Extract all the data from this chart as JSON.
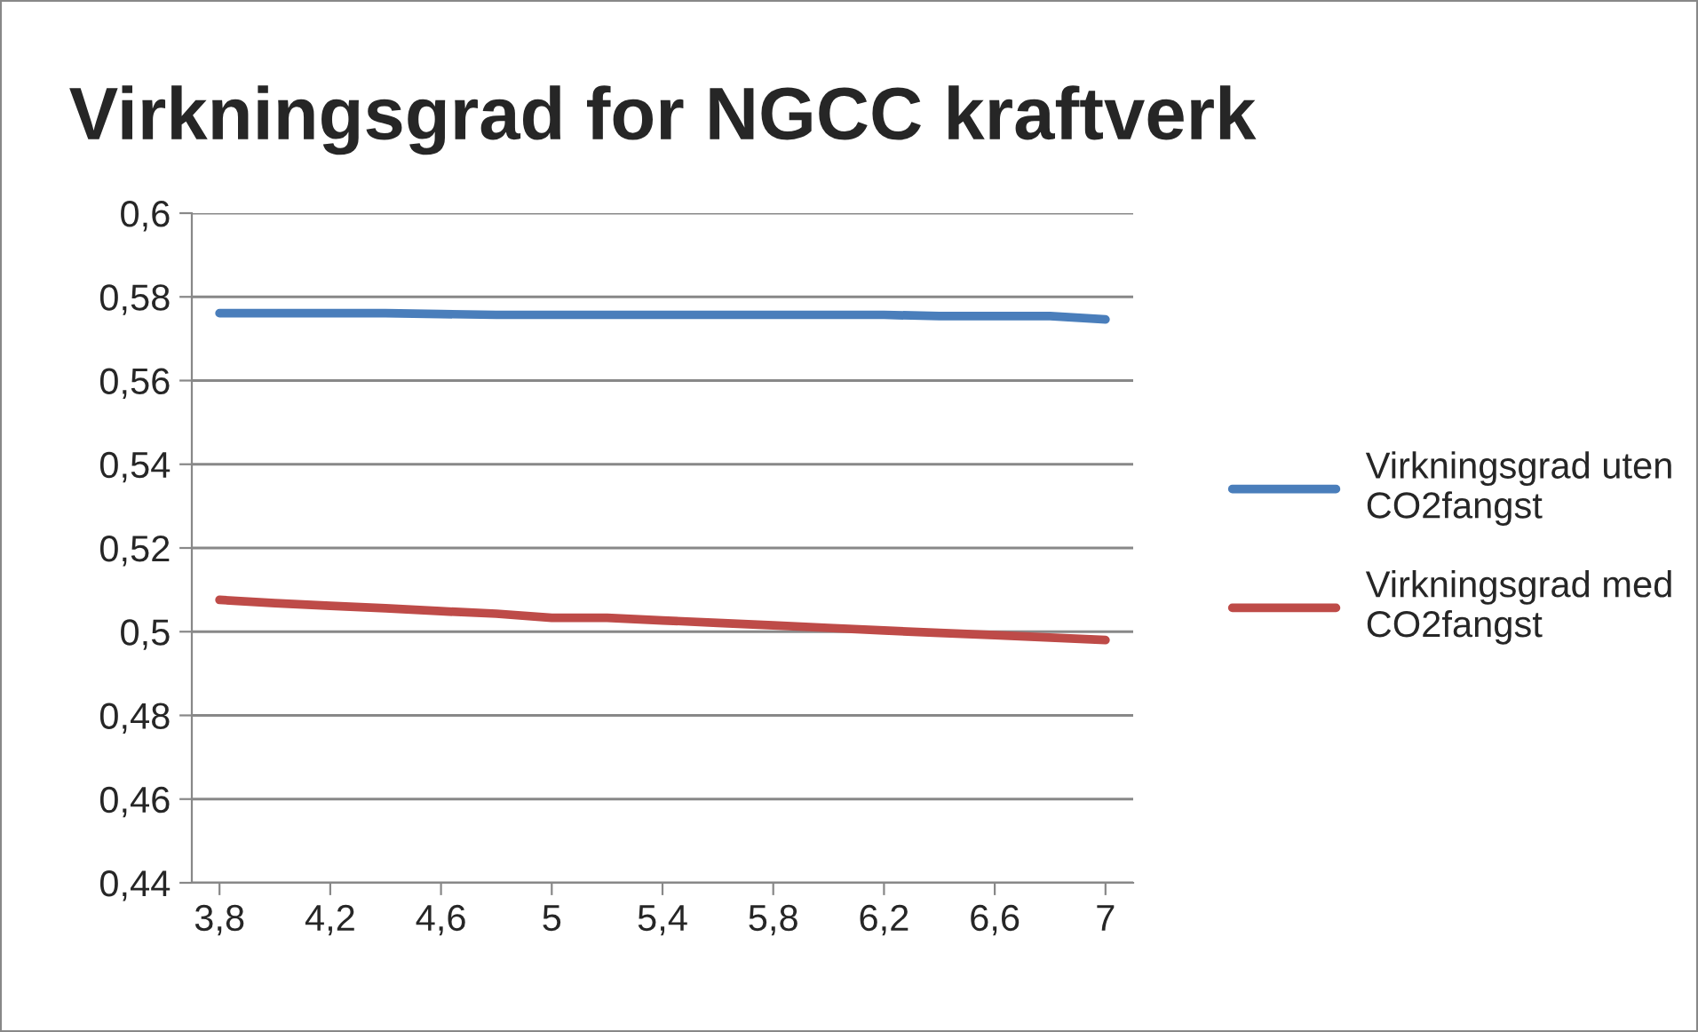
{
  "chart_data": {
    "type": "line",
    "title": "Virkningsgrad for NGCC kraftverk",
    "categories": [
      "3,8",
      null,
      "4,2",
      null,
      "4,6",
      null,
      "5",
      null,
      "5,4",
      null,
      "5,8",
      null,
      "6,2",
      null,
      "6,6",
      null,
      "7"
    ],
    "series": [
      {
        "name": "Virkningsgrad uten CO2fangst",
        "color": "#4a7ebb",
        "values": [
          0.5761,
          0.5761,
          0.5761,
          0.5761,
          0.5759,
          0.5757,
          0.5757,
          0.5757,
          0.5757,
          0.5757,
          0.5757,
          0.5757,
          0.5757,
          0.5754,
          0.5754,
          0.5754,
          0.5746
        ]
      },
      {
        "name": "Virkningsgrad med CO2fangst",
        "color": "#be4b48",
        "values": [
          0.5076,
          0.5068,
          0.5062,
          0.5056,
          0.5049,
          0.5043,
          0.5033,
          0.5033,
          0.5027,
          0.5021,
          0.5015,
          0.5009,
          0.5003,
          0.4997,
          0.4992,
          0.4986,
          0.498
        ]
      }
    ],
    "ylim": [
      0.44,
      0.6
    ],
    "yticks": [
      {
        "value": 0.44,
        "label": "0,44"
      },
      {
        "value": 0.46,
        "label": "0,46"
      },
      {
        "value": 0.48,
        "label": "0,48"
      },
      {
        "value": 0.5,
        "label": "0,5"
      },
      {
        "value": 0.52,
        "label": "0,52"
      },
      {
        "value": 0.54,
        "label": "0,54"
      },
      {
        "value": 0.56,
        "label": "0,56"
      },
      {
        "value": 0.58,
        "label": "0,58"
      },
      {
        "value": 0.6,
        "label": "0,6"
      }
    ],
    "grid": "y",
    "legend": "right",
    "line_style": "solid",
    "marker": "none"
  }
}
